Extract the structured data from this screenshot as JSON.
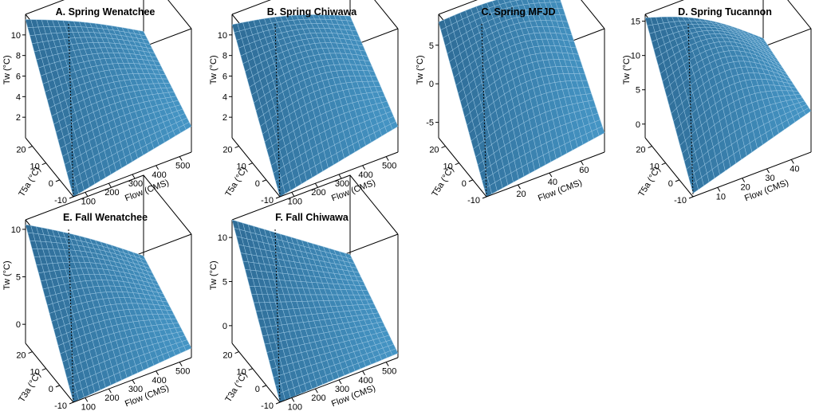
{
  "chart_data": [
    {
      "type": "surface",
      "panel_label": "A.",
      "title": "Spring Wenatchee",
      "zlabel": "Tw (°C)",
      "ylabel": "T5a (°C)",
      "xlabel": "Flow (CMS)",
      "z_ticks": [
        "2",
        "4",
        "6",
        "8",
        "10"
      ],
      "y_ticks": [
        "-10",
        "0",
        "10",
        "20"
      ],
      "x_ticks": [
        "100",
        "200",
        "300",
        "400",
        "500"
      ],
      "xlim": [
        50,
        550
      ],
      "ylim": [
        -10,
        25
      ],
      "zlim": [
        0,
        12
      ],
      "corners": {
        "lowflow_hightemp": 11.5,
        "highflow_hightemp": 6.0,
        "highflow_lowtemp": 2.5,
        "lowflow_lowtemp": 0.0
      },
      "bump": 1.0
    },
    {
      "type": "surface",
      "panel_label": "B.",
      "title": "Spring Chiwawa",
      "zlabel": "Tw (°C)",
      "ylabel": "T5a (°C)",
      "xlabel": "Flow (CMS)",
      "z_ticks": [
        "2",
        "4",
        "6",
        "8",
        "10"
      ],
      "y_ticks": [
        "-10",
        "0",
        "10",
        "20"
      ],
      "x_ticks": [
        "100",
        "200",
        "300",
        "400",
        "500"
      ],
      "xlim": [
        50,
        550
      ],
      "ylim": [
        -10,
        25
      ],
      "zlim": [
        0,
        12
      ],
      "corners": {
        "lowflow_hightemp": 11.0,
        "highflow_hightemp": 7.5,
        "highflow_lowtemp": 2.5,
        "lowflow_lowtemp": 0.0
      },
      "bump": 1.5
    },
    {
      "type": "surface",
      "panel_label": "C.",
      "title": "Spring MFJD",
      "zlabel": "Tw (°C)",
      "ylabel": "T5a (°C)",
      "xlabel": "Flow (CMS)",
      "z_ticks": [
        "-5",
        "0",
        "5"
      ],
      "y_ticks": [
        "-10",
        "0",
        "10",
        "20"
      ],
      "x_ticks": [
        "20",
        "40",
        "60"
      ],
      "xlim": [
        0,
        75
      ],
      "ylim": [
        -10,
        25
      ],
      "zlim": [
        -7,
        9
      ],
      "corners": {
        "lowflow_hightemp": 8.0,
        "highflow_hightemp": 6.5,
        "highflow_lowtemp": -4.5,
        "lowflow_lowtemp": -7.0
      },
      "bump": 2.5
    },
    {
      "type": "surface",
      "panel_label": "D.",
      "title": "Spring Tucannon",
      "zlabel": "Tw (°C)",
      "ylabel": "T5a (°C)",
      "xlabel": "Flow (CMS)",
      "z_ticks": [
        "0",
        "5",
        "10",
        "15"
      ],
      "y_ticks": [
        "-10",
        "0",
        "10",
        "20"
      ],
      "x_ticks": [
        "10",
        "20",
        "30",
        "40"
      ],
      "xlim": [
        0,
        48
      ],
      "ylim": [
        -10,
        25
      ],
      "zlim": [
        -2,
        16
      ],
      "corners": {
        "lowflow_hightemp": 15.5,
        "highflow_hightemp": 6.0,
        "highflow_lowtemp": 4.0,
        "lowflow_lowtemp": -1.5
      },
      "bump": 4.0
    },
    {
      "type": "surface",
      "panel_label": "E.",
      "title": "Fall Wenatchee",
      "zlabel": "Tw (°C)",
      "ylabel": "T3a (°C)",
      "xlabel": "Flow (CMS)",
      "z_ticks": [
        "0",
        "5",
        "10"
      ],
      "y_ticks": [
        "-10",
        "0",
        "10",
        "20"
      ],
      "x_ticks": [
        "100",
        "200",
        "300",
        "400",
        "500"
      ],
      "xlim": [
        50,
        550
      ],
      "ylim": [
        -10,
        25
      ],
      "zlim": [
        -2,
        11
      ],
      "corners": {
        "lowflow_hightemp": 10.5,
        "highflow_hightemp": 2.5,
        "highflow_lowtemp": -1.0,
        "lowflow_lowtemp": -2.0
      },
      "bump": 1.0
    },
    {
      "type": "surface",
      "panel_label": "F.",
      "title": "Fall Chiwawa",
      "zlabel": "Tw (°C)",
      "ylabel": "T3a (°C)",
      "xlabel": "Flow (CMS)",
      "z_ticks": [
        "0",
        "5",
        "10"
      ],
      "y_ticks": [
        "-10",
        "0",
        "10",
        "20"
      ],
      "x_ticks": [
        "100",
        "200",
        "300",
        "400",
        "500"
      ],
      "xlim": [
        50,
        550
      ],
      "ylim": [
        -10,
        25
      ],
      "zlim": [
        -2,
        12
      ],
      "corners": {
        "lowflow_hightemp": 12.0,
        "highflow_hightemp": 3.0,
        "highflow_lowtemp": -1.5,
        "lowflow_lowtemp": -2.0
      },
      "bump": 0.0
    }
  ],
  "colors": {
    "surface": "#2b6690",
    "surface_light": "#4da3d4",
    "grid": "#9cc7e3",
    "box": "#000000"
  }
}
